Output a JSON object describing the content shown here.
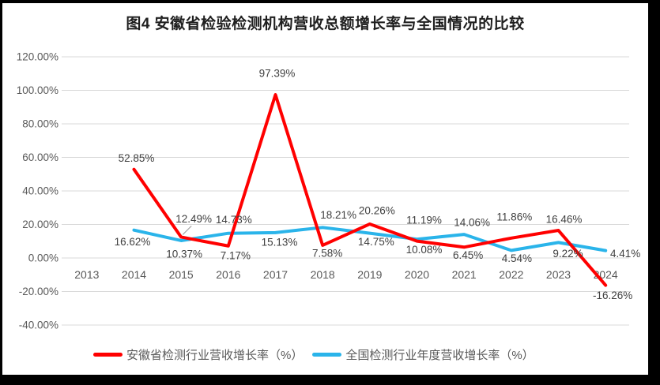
{
  "chart_data": {
    "type": "line",
    "title": "图4 安徽省检验检测机构营收总额增长率与全国情况的比较",
    "categories": [
      "2013",
      "2014",
      "2015",
      "2016",
      "2017",
      "2018",
      "2019",
      "2020",
      "2021",
      "2022",
      "2023",
      "2024"
    ],
    "series": [
      {
        "name": "安徽省检测行业营收增长率（%）",
        "color": "#FF0000",
        "values": [
          null,
          52.85,
          12.49,
          7.17,
          97.39,
          7.58,
          20.26,
          10.08,
          6.45,
          11.86,
          16.46,
          -16.26
        ],
        "label_offsets": [
          null,
          [
            3,
            -14
          ],
          [
            16,
            -23
          ],
          [
            9,
            12
          ],
          [
            2,
            -27
          ],
          [
            6,
            10
          ],
          [
            9,
            -17
          ],
          [
            9,
            11
          ],
          [
            5,
            10
          ],
          [
            4,
            -27
          ],
          [
            7,
            -14
          ],
          [
            9,
            13
          ]
        ]
      },
      {
        "name": "全国检测行业年度营收增长率（%）",
        "color": "#2AB4EA",
        "values": [
          null,
          16.62,
          10.37,
          14.73,
          15.13,
          18.21,
          14.75,
          11.19,
          14.06,
          4.54,
          9.22,
          4.41
        ],
        "label_offsets": [
          null,
          [
            -2,
            15
          ],
          [
            4,
            17
          ],
          [
            7,
            -17
          ],
          [
            5,
            12
          ],
          [
            20,
            -16
          ],
          [
            8,
            11
          ],
          [
            9,
            -24
          ],
          [
            10,
            -15
          ],
          [
            7,
            10
          ],
          [
            12,
            14
          ],
          [
            25,
            4
          ]
        ]
      }
    ],
    "ylim": [
      -40,
      120
    ],
    "ytick_step": 20,
    "ytick_labels": [
      "120.00%",
      "100.00%",
      "80.00%",
      "60.00%",
      "40.00%",
      "20.00%",
      "0.00%",
      "-20.00%",
      "-40.00%"
    ],
    "value_format": "two-decimal-percent",
    "grid": true,
    "legend_position": "bottom",
    "annotation_leader_line": {
      "category": "2015",
      "series_index": 0
    }
  },
  "colors": {
    "gridline": "#D9D9D9",
    "axis_text": "#595959",
    "data_label": "#404040",
    "leader_line": "#A6A6A6",
    "frame_border": "#000000",
    "background": "#FFFFFF"
  }
}
